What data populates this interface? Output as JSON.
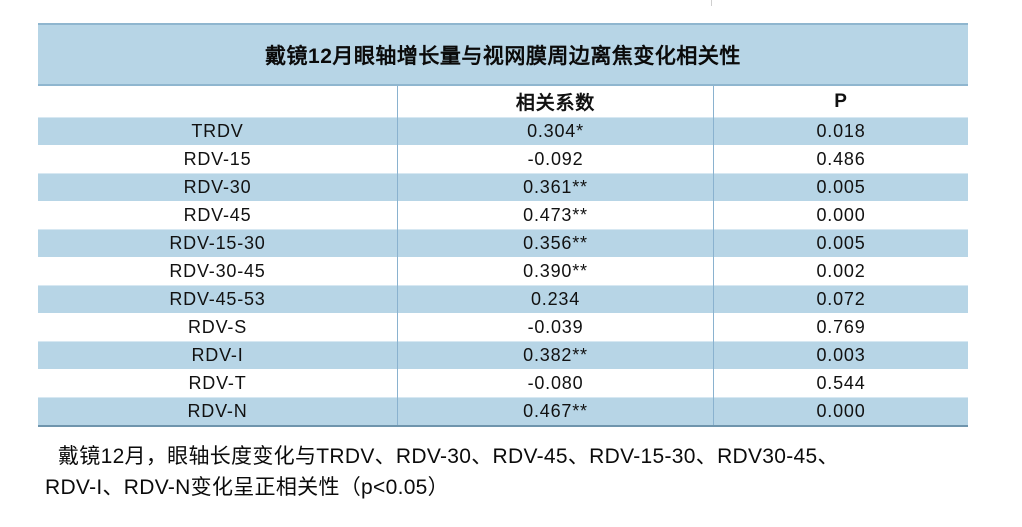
{
  "chart_data": {
    "type": "table",
    "title": "戴镜12月眼轴增长量与视网膜周边离焦变化相关性",
    "columns": [
      "",
      "相关系数",
      "P"
    ],
    "rows": [
      [
        "TRDV",
        "0.304*",
        "0.018"
      ],
      [
        "RDV-15",
        "-0.092",
        "0.486"
      ],
      [
        "RDV-30",
        "0.361**",
        "0.005"
      ],
      [
        "RDV-45",
        "0.473**",
        "0.000"
      ],
      [
        "RDV-15-30",
        "0.356**",
        "0.005"
      ],
      [
        "RDV-30-45",
        "0.390**",
        "0.002"
      ],
      [
        "RDV-45-53",
        "0.234",
        "0.072"
      ],
      [
        "RDV-S",
        "-0.039",
        "0.769"
      ],
      [
        "RDV-I",
        "0.382**",
        "0.003"
      ],
      [
        "RDV-T",
        "-0.080",
        "0.544"
      ],
      [
        "RDV-N",
        "0.467**",
        "0.000"
      ]
    ],
    "note": "戴镜12月，眼轴长度变化与TRDV、RDV-30、RDV-45、RDV-15-30、RDV30-45、RDV-I、RDV-N变化呈正相关性（p<0.05）",
    "layout_hints": {
      "row_striping": "blue-white alternating starting blue",
      "alignment": "all cells centered"
    }
  },
  "footnote": {
    "lines": [
      "戴镜12月，眼轴长度变化与TRDV、RDV-30、RDV-45、RDV-15-30、RDV30-45、",
      "RDV-I、RDV-N变化呈正相关性（p<0.05）"
    ]
  },
  "theme": {
    "row_blue": "#b7d5e6",
    "divider_blue": "#8ab2cf",
    "band_border_blue": "#8fb6cf",
    "bottom_border_blue": "#6f95ad",
    "text_color": "#111111"
  }
}
